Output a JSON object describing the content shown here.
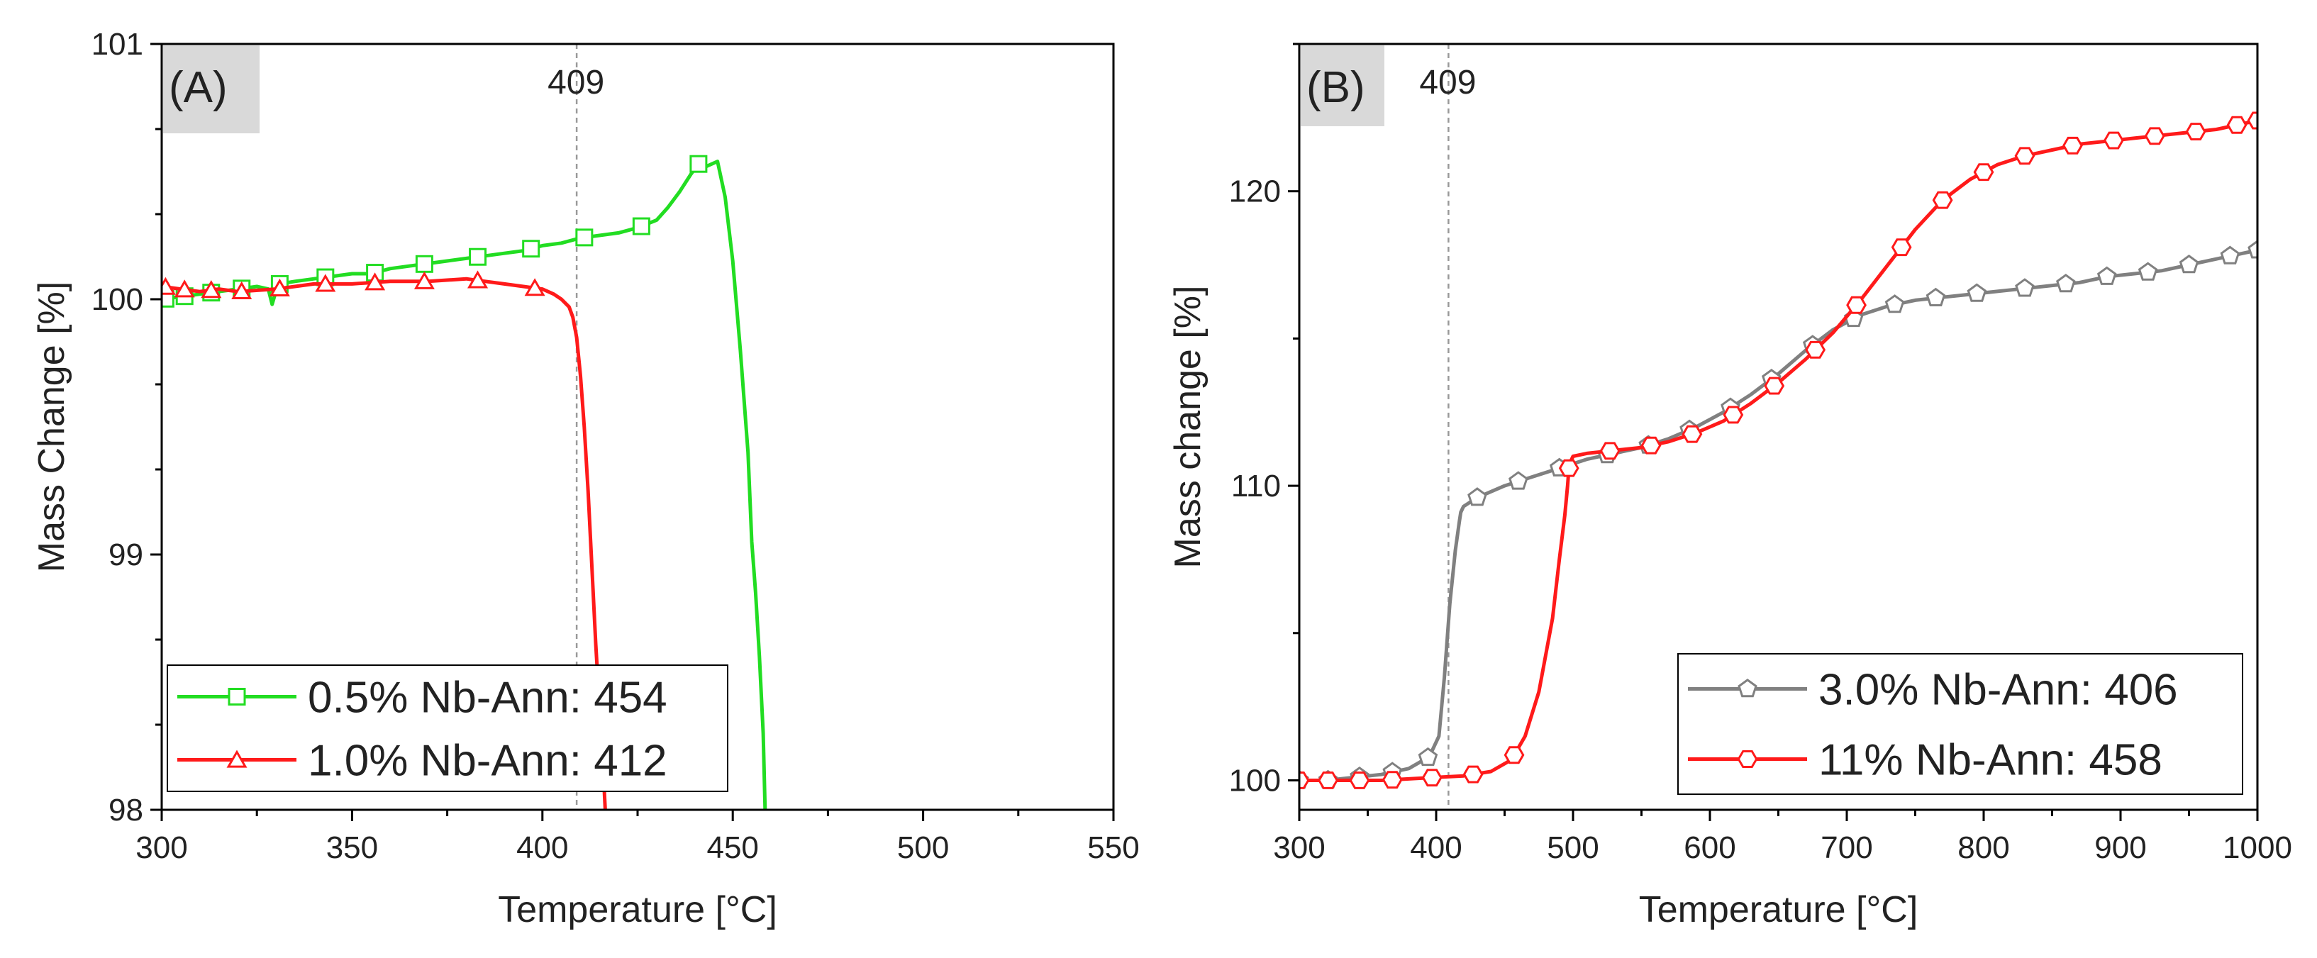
{
  "chart_data": [
    {
      "type": "line",
      "panel_label": "(A)",
      "xlabel": "Temperature [°C]",
      "ylabel": "Mass Change [%]",
      "xlim": [
        300,
        550
      ],
      "ylim": [
        98,
        101
      ],
      "xticks": [
        300,
        350,
        400,
        450,
        500,
        550
      ],
      "yticks": [
        98,
        99,
        100,
        101
      ],
      "annotations": [
        {
          "text": "409",
          "x": 409
        }
      ],
      "legend_position": "bottom-left",
      "colors": {
        "series_1": "#22dd22",
        "series_2": "#ff1a1a",
        "panel_label_bg": "#d9d9d9",
        "vline": "#999999"
      },
      "series": [
        {
          "name": "0.5% Nb-Ann: 454",
          "marker": "square",
          "x": [
            300,
            305,
            310,
            315,
            320,
            325,
            328,
            329,
            330,
            331,
            335,
            340,
            345,
            350,
            355,
            360,
            365,
            370,
            375,
            380,
            385,
            390,
            395,
            400,
            405,
            410,
            415,
            420,
            425,
            430,
            433,
            436,
            439,
            441,
            443,
            446,
            448,
            450,
            452,
            454,
            455,
            456,
            457,
            458,
            458.5
          ],
          "values": [
            100.0,
            100.01,
            100.02,
            100.03,
            100.04,
            100.05,
            100.04,
            99.98,
            100.03,
            100.06,
            100.07,
            100.08,
            100.09,
            100.1,
            100.1,
            100.12,
            100.13,
            100.14,
            100.15,
            100.16,
            100.17,
            100.18,
            100.19,
            100.21,
            100.22,
            100.24,
            100.25,
            100.26,
            100.28,
            100.31,
            100.36,
            100.42,
            100.49,
            100.53,
            100.52,
            100.54,
            100.4,
            100.15,
            99.8,
            99.4,
            99.05,
            98.85,
            98.6,
            98.3,
            98.0
          ],
          "marker_x": [
            301,
            306,
            313,
            321,
            331,
            343,
            356,
            369,
            383,
            397,
            411,
            426,
            441
          ]
        },
        {
          "name": "1.0% Nb-Ann: 412",
          "marker": "triangle",
          "x": [
            300,
            305,
            310,
            315,
            320,
            330,
            340,
            350,
            360,
            370,
            380,
            385,
            390,
            395,
            400,
            403,
            405,
            407,
            408,
            409,
            410,
            411,
            412,
            413,
            414,
            415,
            416,
            416.5
          ],
          "values": [
            100.05,
            100.04,
            100.03,
            100.04,
            100.03,
            100.04,
            100.06,
            100.06,
            100.07,
            100.07,
            100.08,
            100.07,
            100.06,
            100.05,
            100.04,
            100.02,
            100.0,
            99.97,
            99.93,
            99.85,
            99.7,
            99.5,
            99.25,
            98.95,
            98.65,
            98.4,
            98.15,
            98.0
          ],
          "marker_x": [
            301,
            306,
            313,
            321,
            331,
            343,
            356,
            369,
            383,
            398,
            415
          ]
        }
      ]
    },
    {
      "type": "line",
      "panel_label": "(B)",
      "xlabel": "Temperature [°C]",
      "ylabel": "Mass change [%]",
      "xlim": [
        300,
        1000
      ],
      "ylim": [
        99,
        125
      ],
      "xticks": [
        300,
        400,
        500,
        600,
        700,
        800,
        900,
        1000
      ],
      "yticks": [
        100,
        110,
        120
      ],
      "annotations": [
        {
          "text": "409",
          "x": 409
        }
      ],
      "legend_position": "bottom-right",
      "colors": {
        "series_1": "#808080",
        "series_2": "#ff1a1a",
        "panel_label_bg": "#d9d9d9",
        "vline": "#999999"
      },
      "series": [
        {
          "name": "3.0% Nb-Ann: 406",
          "marker": "pentagon",
          "x": [
            300,
            320,
            340,
            360,
            380,
            395,
            402,
            406,
            410,
            414,
            417,
            418,
            420,
            430,
            450,
            470,
            490,
            510,
            530,
            550,
            570,
            590,
            610,
            630,
            650,
            670,
            690,
            710,
            730,
            750,
            770,
            790,
            810,
            830,
            850,
            870,
            890,
            910,
            930,
            950,
            970,
            990,
            1000
          ],
          "values": [
            100.0,
            100.0,
            100.1,
            100.2,
            100.4,
            100.8,
            101.5,
            103.5,
            106.0,
            107.8,
            108.8,
            109.1,
            109.3,
            109.6,
            110.0,
            110.3,
            110.6,
            110.9,
            111.1,
            111.3,
            111.6,
            112.0,
            112.5,
            113.1,
            113.8,
            114.6,
            115.3,
            115.8,
            116.1,
            116.3,
            116.4,
            116.5,
            116.6,
            116.7,
            116.8,
            116.9,
            117.1,
            117.2,
            117.3,
            117.5,
            117.7,
            117.9,
            118.0
          ],
          "marker_x": [
            300,
            321,
            344,
            368,
            394,
            430,
            460,
            490,
            525,
            555,
            585,
            615,
            645,
            675,
            705,
            735,
            765,
            795,
            830,
            860,
            890,
            920,
            950,
            980,
            1000
          ]
        },
        {
          "name": "11% Nb-Ann: 458",
          "marker": "hexagon",
          "x": [
            300,
            320,
            340,
            360,
            380,
            400,
            420,
            440,
            455,
            465,
            475,
            485,
            490,
            494,
            496,
            497,
            498,
            500,
            510,
            530,
            550,
            570,
            590,
            610,
            630,
            650,
            670,
            690,
            710,
            730,
            750,
            770,
            790,
            810,
            830,
            850,
            870,
            890,
            910,
            930,
            950,
            970,
            990,
            1000
          ],
          "values": [
            100.0,
            100.0,
            100.0,
            100.0,
            100.05,
            100.1,
            100.15,
            100.3,
            100.7,
            101.5,
            103.0,
            105.5,
            107.5,
            109.0,
            110.0,
            110.6,
            110.8,
            111.0,
            111.1,
            111.2,
            111.3,
            111.5,
            111.8,
            112.2,
            112.8,
            113.5,
            114.3,
            115.2,
            116.3,
            117.5,
            118.7,
            119.7,
            120.4,
            120.9,
            121.2,
            121.4,
            121.6,
            121.7,
            121.8,
            121.9,
            122.0,
            122.1,
            122.3,
            122.4
          ],
          "marker_x": [
            300,
            321,
            344,
            368,
            397,
            427,
            457,
            497,
            527,
            557,
            587,
            617,
            647,
            677,
            707,
            740,
            770,
            800,
            830,
            865,
            895,
            925,
            955,
            985,
            1000
          ]
        }
      ]
    }
  ]
}
